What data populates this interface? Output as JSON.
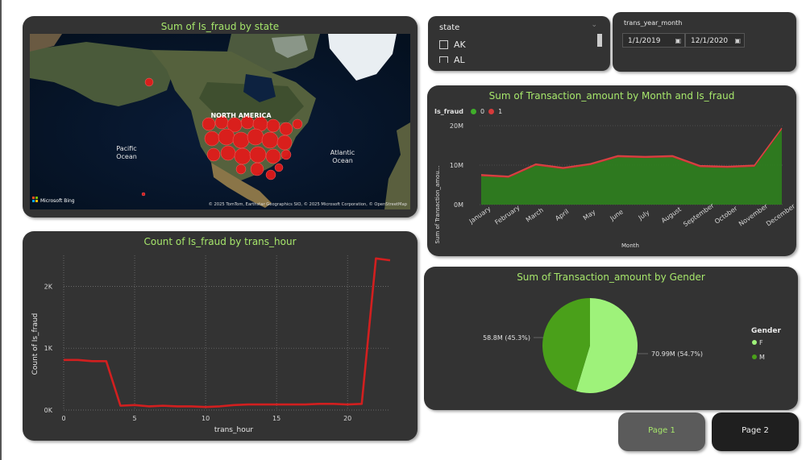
{
  "map": {
    "title": "Sum of Is_fraud by state",
    "label_region": "NORTH AMERICA",
    "label_pacific": [
      "Pacific",
      "Ocean"
    ],
    "label_atlantic": [
      "Atlantic",
      "Ocean"
    ],
    "bing_logo": "Microsoft Bing",
    "copyright": "© 2025 TomTom, Earthstar Geographics SIO, © 2025 Microsoft Corporation, © OpenStreetMap"
  },
  "state_slicer": {
    "title": "state",
    "items": [
      "AK",
      "AL"
    ]
  },
  "date_slicer": {
    "title": "trans_year_month",
    "start": "1/1/2019",
    "end": "12/1/2020"
  },
  "area_chart": {
    "title": "Sum of Transaction_amount by Month and Is_fraud",
    "legend_title": "Is_fraud",
    "legend_items": [
      "0",
      "1"
    ],
    "colors": {
      "series0": "#2e7d1f",
      "series1": "#d63a3a"
    },
    "chart_data": {
      "type": "area",
      "categories": [
        "January",
        "February",
        "March",
        "April",
        "May",
        "June",
        "July",
        "August",
        "September",
        "October",
        "November",
        "December"
      ],
      "series": [
        {
          "name": "0",
          "values": [
            7.2,
            6.8,
            9.9,
            9.0,
            10.0,
            12.0,
            11.8,
            12.0,
            9.5,
            9.3,
            9.6,
            19.0
          ]
        },
        {
          "name": "1",
          "values": [
            0.4,
            0.4,
            0.4,
            0.4,
            0.4,
            0.4,
            0.4,
            0.4,
            0.4,
            0.4,
            0.4,
            0.4
          ]
        }
      ],
      "ylabel": "Sum of Transaction_amou...",
      "xlabel": "Month",
      "yticks": [
        "0M",
        "10M",
        "20M"
      ],
      "ylim": [
        0,
        20
      ]
    }
  },
  "line_chart": {
    "title": "Count of Is_fraud by trans_hour",
    "color": "#d21f1f",
    "chart_data": {
      "type": "line",
      "x": [
        0,
        1,
        2,
        3,
        4,
        5,
        6,
        7,
        8,
        9,
        10,
        11,
        12,
        13,
        14,
        15,
        16,
        17,
        18,
        19,
        20,
        21,
        22,
        23
      ],
      "values": [
        810,
        810,
        790,
        790,
        70,
        80,
        60,
        70,
        60,
        60,
        50,
        60,
        80,
        90,
        90,
        90,
        90,
        90,
        100,
        100,
        90,
        100,
        2450,
        2420
      ],
      "xlabel": "trans_hour",
      "ylabel": "Count of Is_fraud",
      "xticks": [
        "0",
        "5",
        "10",
        "15",
        "20"
      ],
      "yticks": [
        "0K",
        "1K",
        "2K"
      ],
      "xlim": [
        0,
        23
      ],
      "ylim": [
        0,
        2500
      ],
      "grid": true
    }
  },
  "pie_chart": {
    "title": "Sum of Transaction_amount by Gender",
    "legend_title": "Gender",
    "colors": {
      "F": "#9ef27a",
      "M": "#4aa01a"
    },
    "chart_data": {
      "type": "pie",
      "labels": [
        "F",
        "M"
      ],
      "values": [
        70.99,
        58.8
      ],
      "data_labels": [
        "70.99M (54.7%)",
        "58.8M (45.3%)"
      ]
    }
  },
  "pages": {
    "page1": "Page 1",
    "page2": "Page 2"
  }
}
